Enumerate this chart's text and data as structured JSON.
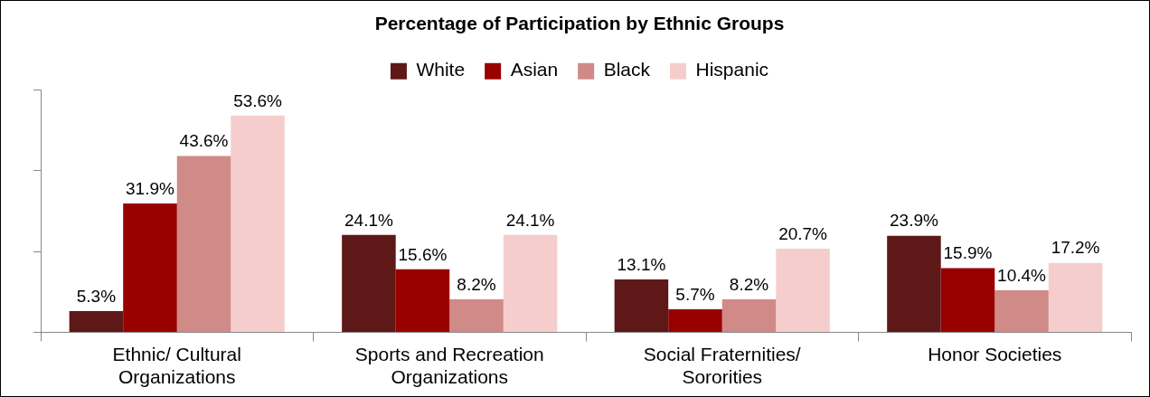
{
  "chart_data": {
    "type": "bar",
    "title": "Percentage of Participation by Ethnic Groups",
    "categories": [
      "Ethnic/ Cultural Organizations",
      "Sports and Recreation Organizations",
      "Social Fraternities/ Sororities",
      "Honor Societies"
    ],
    "series": [
      {
        "name": "White",
        "color": "#5e1818",
        "values": [
          5.3,
          24.1,
          13.1,
          23.9
        ],
        "value_labels": [
          "5.3%",
          "24.1%",
          "13.1%",
          "23.9%"
        ]
      },
      {
        "name": "Asian",
        "color": "#990000",
        "values": [
          31.9,
          15.6,
          5.7,
          15.9
        ],
        "value_labels": [
          "31.9%",
          "15.6%",
          "5.7%",
          "15.9%"
        ]
      },
      {
        "name": "Black",
        "color": "#d08a87",
        "values": [
          43.6,
          8.2,
          8.2,
          10.4
        ],
        "value_labels": [
          "43.6%",
          "8.2%",
          "8.2%",
          "10.4%"
        ]
      },
      {
        "name": "Hispanic",
        "color": "#f6cdcd",
        "values": [
          53.6,
          24.1,
          20.7,
          17.2
        ],
        "value_labels": [
          "53.6%",
          "24.1%",
          "20.7%",
          "17.2%"
        ]
      }
    ],
    "ylim": [
      0,
      60
    ],
    "yticks": [
      {
        "value": 0,
        "label": null
      },
      {
        "value": 20,
        "label": null
      },
      {
        "value": 40,
        "label": null
      },
      {
        "value": 60,
        "label": null
      }
    ],
    "tick_labels": "x",
    "grid": false,
    "legend": "top"
  }
}
